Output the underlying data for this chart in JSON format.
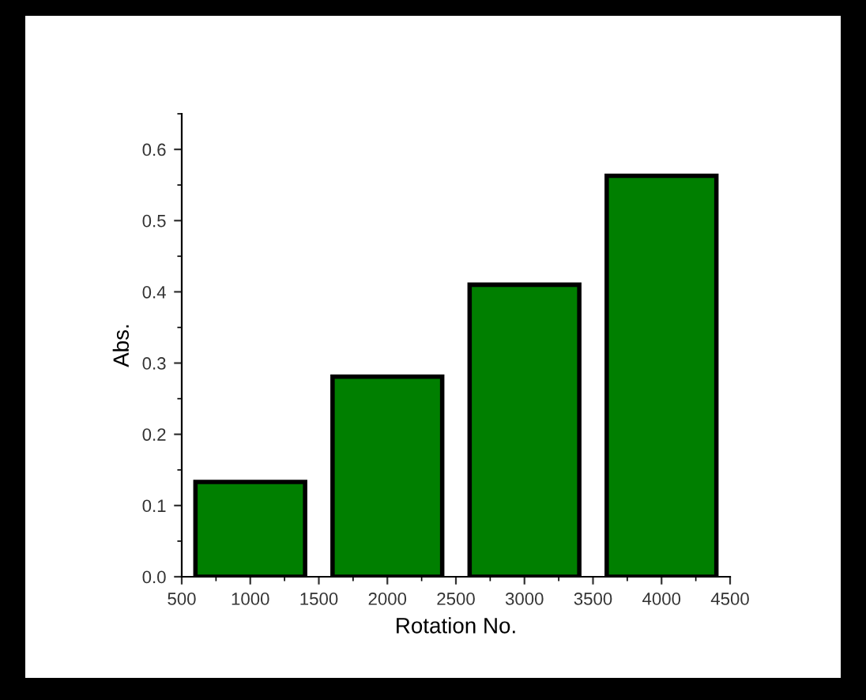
{
  "chart_data": {
    "type": "bar",
    "xlabel": "Rotation No.",
    "ylabel": "Abs.",
    "x": [
      1000,
      2000,
      3000,
      4000
    ],
    "values": [
      0.133,
      0.281,
      0.41,
      0.563
    ],
    "color": "#007f00",
    "xlim": [
      500,
      4500
    ],
    "xticks": [
      500,
      1000,
      1500,
      2000,
      2500,
      3000,
      3500,
      4000,
      4500
    ],
    "ylim": [
      0,
      0.65
    ],
    "yticks": [
      {
        "value": 0,
        "label": "0.0"
      },
      0.1,
      0.2,
      0.3,
      0.4,
      0.5,
      0.6
    ],
    "grid": false,
    "legend": false
  }
}
